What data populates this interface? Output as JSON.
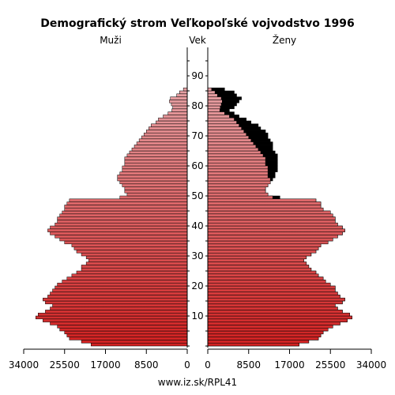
{
  "chart_data": {
    "type": "bar",
    "subtype": "population-pyramid",
    "title": "Demografický strom Veľkopoľské vojvodstvo 1996",
    "left_label": "Muži",
    "center_label": "Vek",
    "right_label": "Ženy",
    "footer": "www.iz.sk/RPL41",
    "age_ticks": [
      "10",
      "20",
      "30",
      "40",
      "50",
      "60",
      "70",
      "80",
      "90"
    ],
    "x_tick_labels_left": [
      "34000",
      "25500",
      "17000",
      "8500",
      "0"
    ],
    "x_tick_labels_right": [
      "0",
      "8500",
      "17000",
      "25500",
      "34000"
    ],
    "xlim": [
      0,
      34000
    ],
    "ages": [
      0,
      1,
      2,
      3,
      4,
      5,
      6,
      7,
      8,
      9,
      10,
      11,
      12,
      13,
      14,
      15,
      16,
      17,
      18,
      19,
      20,
      21,
      22,
      23,
      24,
      25,
      26,
      27,
      28,
      29,
      30,
      31,
      32,
      33,
      34,
      35,
      36,
      37,
      38,
      39,
      40,
      41,
      42,
      43,
      44,
      45,
      46,
      47,
      48,
      49,
      50,
      51,
      52,
      53,
      54,
      55,
      56,
      57,
      58,
      59,
      60,
      61,
      62,
      63,
      64,
      65,
      66,
      67,
      68,
      69,
      70,
      71,
      72,
      73,
      74,
      75,
      76,
      77,
      78,
      79,
      80,
      81,
      82,
      83,
      84,
      85
    ],
    "males": [
      20000,
      22000,
      24500,
      25000,
      25500,
      26500,
      27000,
      28500,
      30000,
      31500,
      31000,
      29500,
      28500,
      28000,
      29500,
      30000,
      29000,
      28500,
      28000,
      27500,
      27000,
      26000,
      25000,
      24000,
      23000,
      22000,
      22000,
      21000,
      20500,
      21000,
      22000,
      23000,
      23500,
      24000,
      25500,
      26500,
      27500,
      28500,
      29000,
      28500,
      27500,
      27000,
      27000,
      26500,
      26000,
      25500,
      25500,
      25000,
      24500,
      14000,
      12500,
      13000,
      13000,
      13500,
      14000,
      14500,
      14500,
      14000,
      13500,
      13500,
      13000,
      13000,
      13000,
      12500,
      12000,
      11500,
      11000,
      10500,
      10000,
      9500,
      9000,
      8500,
      8000,
      7500,
      6500,
      6000,
      5000,
      4000,
      3200,
      3000,
      3300,
      3700,
      3500,
      2200,
      1600,
      800
    ],
    "females_excess": [
      19000,
      21000,
      23000,
      23500,
      24000,
      25000,
      26000,
      27500,
      29000,
      30000,
      29500,
      28000,
      27000,
      26500,
      28000,
      28500,
      27500,
      27000,
      26500,
      26500,
      25500,
      24500,
      24000,
      23000,
      22500,
      21500,
      21000,
      20500,
      20000,
      20500,
      21500,
      22500,
      23000,
      23500,
      25000,
      26000,
      27000,
      28000,
      28500,
      28000,
      27000,
      26500,
      26500,
      26000,
      25500,
      24000,
      23500,
      23500,
      22500,
      15000,
      12500,
      12000,
      12000,
      12500,
      13000,
      13500,
      14000,
      14000,
      14500,
      14500,
      14500,
      14500,
      14500,
      14500,
      14000,
      13500,
      13500,
      13500,
      13000,
      12500,
      12500,
      12000,
      11000,
      10500,
      9000,
      8000,
      6500,
      5500,
      4500,
      5500,
      6000,
      6500,
      7000,
      6000,
      5500,
      3500
    ],
    "females_matching": [
      19000,
      21000,
      23000,
      23500,
      24000,
      25000,
      26000,
      27500,
      29000,
      30000,
      29500,
      28000,
      27000,
      26500,
      28000,
      28500,
      27500,
      27000,
      26500,
      26500,
      25500,
      24500,
      24000,
      23000,
      22500,
      21500,
      21000,
      20500,
      20000,
      20500,
      21500,
      22500,
      23000,
      23500,
      25000,
      26000,
      27000,
      28000,
      28500,
      28000,
      27000,
      26500,
      26500,
      26000,
      25500,
      24000,
      23500,
      23500,
      22500,
      13500,
      12500,
      12000,
      12000,
      12500,
      13000,
      13000,
      12500,
      12500,
      12500,
      12500,
      12000,
      12000,
      12000,
      11500,
      11000,
      10500,
      10000,
      9500,
      9000,
      8500,
      8000,
      7500,
      7000,
      6500,
      6000,
      5500,
      4500,
      3500,
      2500,
      2600,
      2800,
      3000,
      2800,
      2000,
      1500,
      800
    ],
    "colors": {
      "top_pink": "#e8b4b8",
      "bottom_red": "#d02020",
      "excess": "#000000",
      "bar_border": "#000000",
      "axis": "#000000"
    }
  }
}
